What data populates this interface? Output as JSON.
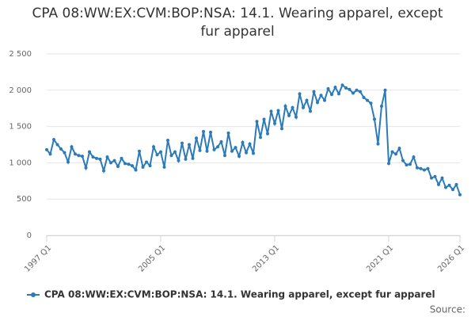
{
  "chart_data": {
    "type": "line",
    "title": "CPA 08:WW:EX:CVM:BOP:NSA: 14.1. Wearing apparel, except fur apparel",
    "source": "Source:",
    "categories": [
      "1997 Q1",
      null,
      null,
      null,
      null,
      null,
      null,
      null,
      null,
      null,
      null,
      null,
      null,
      null,
      null,
      null,
      null,
      null,
      null,
      null,
      null,
      null,
      null,
      null,
      null,
      null,
      null,
      null,
      null,
      null,
      null,
      null,
      "2005 Q1",
      null,
      null,
      null,
      null,
      null,
      null,
      null,
      null,
      null,
      null,
      null,
      null,
      null,
      null,
      null,
      null,
      null,
      null,
      null,
      null,
      null,
      null,
      null,
      null,
      null,
      null,
      null,
      null,
      null,
      null,
      null,
      "2013 Q1",
      null,
      null,
      null,
      null,
      null,
      null,
      null,
      null,
      null,
      null,
      null,
      null,
      null,
      null,
      null,
      null,
      null,
      null,
      null,
      null,
      null,
      null,
      null,
      null,
      null,
      null,
      null,
      null,
      null,
      null,
      null,
      "2021 Q1",
      null,
      null,
      null,
      null,
      null,
      null,
      null,
      null,
      null,
      null,
      null,
      null,
      null,
      null,
      null,
      null,
      null,
      null,
      null,
      "2026 Q1"
    ],
    "series": [
      {
        "name": "CPA 08:WW:EX:CVM:BOP:NSA: 14.1. Wearing apparel, except fur apparel",
        "color": "#2b7bb9",
        "values": [
          1180,
          1120,
          1320,
          1250,
          1190,
          1140,
          1010,
          1220,
          1120,
          1100,
          1090,
          930,
          1150,
          1080,
          1060,
          1050,
          890,
          1080,
          1000,
          1030,
          950,
          1060,
          990,
          980,
          960,
          900,
          1160,
          940,
          1010,
          960,
          1220,
          1110,
          1150,
          940,
          1310,
          1100,
          1150,
          1030,
          1270,
          1050,
          1250,
          1060,
          1340,
          1170,
          1430,
          1160,
          1420,
          1180,
          1220,
          1290,
          1100,
          1410,
          1160,
          1210,
          1090,
          1280,
          1140,
          1260,
          1130,
          1570,
          1350,
          1600,
          1400,
          1710,
          1540,
          1720,
          1470,
          1780,
          1650,
          1760,
          1630,
          1950,
          1760,
          1860,
          1710,
          1980,
          1830,
          1930,
          1860,
          2020,
          1940,
          2040,
          1950,
          2070,
          2030,
          2010,
          1960,
          2000,
          1980,
          1900,
          1860,
          1820,
          1600,
          1260,
          1780,
          2000,
          990,
          1150,
          1120,
          1200,
          1030,
          970,
          980,
          1080,
          930,
          920,
          900,
          920,
          790,
          810,
          700,
          790,
          660,
          690,
          630,
          700,
          560
        ]
      }
    ],
    "ylim": [
      0,
      2500
    ],
    "yticks": [
      0,
      500,
      {
        "value": 1000,
        "label": "1 000"
      },
      {
        "value": 1500,
        "label": "1 500"
      },
      {
        "value": 2000,
        "label": "2 000"
      },
      {
        "value": 2500,
        "label": "2 500"
      }
    ],
    "grid": true
  }
}
